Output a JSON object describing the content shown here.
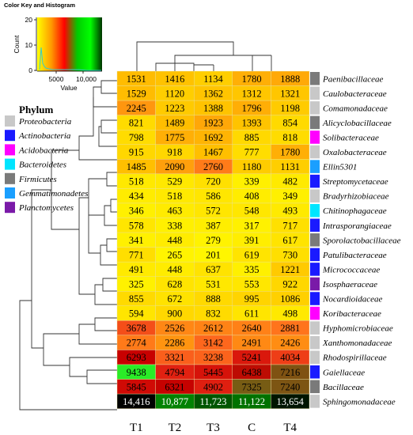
{
  "color_key": {
    "title": "Color Key and Histogram",
    "ylabel": "Count",
    "xlabel": "Value",
    "y_ticks": [
      "0",
      "10",
      "20"
    ],
    "x_ticks": [
      "5000",
      "10,000"
    ]
  },
  "legend": {
    "title": "Phylum",
    "items": [
      {
        "label": "Proteobacteria",
        "color": "#c8c8c8"
      },
      {
        "label": "Actinobacteria",
        "color": "#1a1aff"
      },
      {
        "label": "Acidobacteria",
        "color": "#ff00ff"
      },
      {
        "label": "Bacteroidetes",
        "color": "#00e5ff"
      },
      {
        "label": "Firmicutes",
        "color": "#7a7a7a"
      },
      {
        "label": "Gemmatimonadetes",
        "color": "#1a9fff"
      },
      {
        "label": "Planctomycetes",
        "color": "#7a1aa8"
      }
    ]
  },
  "chart_data": {
    "type": "heatmap",
    "columns": [
      "T1",
      "T2",
      "T3",
      "C",
      "T4"
    ],
    "rows": [
      {
        "family": "Paenibacillaceae",
        "phylum": "Firmicutes",
        "values": [
          1531,
          1416,
          1134,
          1780,
          1888
        ]
      },
      {
        "family": "Caulobacteraceae",
        "phylum": "Proteobacteria",
        "values": [
          1529,
          1120,
          1362,
          1312,
          1321
        ]
      },
      {
        "family": "Comamonadaceae",
        "phylum": "Proteobacteria",
        "values": [
          2245,
          1223,
          1388,
          1796,
          1198
        ]
      },
      {
        "family": "Alicyclobacillaceae",
        "phylum": "Firmicutes",
        "values": [
          821,
          1489,
          1923,
          1393,
          854
        ]
      },
      {
        "family": "Solibacteraceae",
        "phylum": "Acidobacteria",
        "values": [
          798,
          1775,
          1692,
          885,
          818
        ]
      },
      {
        "family": "Oxalobacteraceae",
        "phylum": "Proteobacteria",
        "values": [
          915,
          918,
          1467,
          777,
          1780
        ]
      },
      {
        "family": "Ellin5301",
        "phylum": "Gemmatimonadetes",
        "values": [
          1485,
          2090,
          2760,
          1180,
          1131
        ]
      },
      {
        "family": "Streptomycetaceae",
        "phylum": "Actinobacteria",
        "values": [
          518,
          529,
          720,
          339,
          482
        ]
      },
      {
        "family": "Bradyrhizobiaceae",
        "phylum": "Proteobacteria",
        "values": [
          434,
          518,
          586,
          408,
          349
        ]
      },
      {
        "family": "Chitinophagaceae",
        "phylum": "Bacteroidetes",
        "values": [
          346,
          463,
          572,
          548,
          493
        ]
      },
      {
        "family": "Intrasporangiaceae",
        "phylum": "Actinobacteria",
        "values": [
          578,
          338,
          387,
          317,
          717
        ]
      },
      {
        "family": "Sporolactobacillaceae",
        "phylum": "Firmicutes",
        "values": [
          341,
          448,
          279,
          391,
          617
        ]
      },
      {
        "family": "Patulibacteraceae",
        "phylum": "Actinobacteria",
        "values": [
          771,
          265,
          201,
          619,
          730
        ]
      },
      {
        "family": "Micrococcaceae",
        "phylum": "Actinobacteria",
        "values": [
          491,
          448,
          637,
          335,
          1221
        ]
      },
      {
        "family": "Isosphaeraceae",
        "phylum": "Planctomycetes",
        "values": [
          325,
          628,
          531,
          553,
          922
        ]
      },
      {
        "family": "Nocardioidaceae",
        "phylum": "Actinobacteria",
        "values": [
          855,
          672,
          888,
          995,
          1086
        ]
      },
      {
        "family": "Koribacteraceae",
        "phylum": "Acidobacteria",
        "values": [
          594,
          900,
          832,
          611,
          498
        ]
      },
      {
        "family": "Hyphomicrobiaceae",
        "phylum": "Proteobacteria",
        "values": [
          3678,
          2526,
          2612,
          2640,
          2881
        ]
      },
      {
        "family": "Xanthomonadaceae",
        "phylum": "Proteobacteria",
        "values": [
          2774,
          2286,
          3142,
          2491,
          2426
        ]
      },
      {
        "family": "Rhodospirillaceae",
        "phylum": "Proteobacteria",
        "values": [
          6293,
          3321,
          3238,
          5241,
          4034
        ]
      },
      {
        "family": "Gaiellaceae",
        "phylum": "Actinobacteria",
        "values": [
          9438,
          4794,
          5445,
          6438,
          7216
        ]
      },
      {
        "family": "Bacillaceae",
        "phylum": "Firmicutes",
        "values": [
          5845,
          6321,
          4902,
          7325,
          7240
        ]
      },
      {
        "family": "Sphingomonadaceae",
        "phylum": "Proteobacteria",
        "values": [
          14416,
          10877,
          11723,
          11122,
          13654
        ]
      }
    ],
    "value_labels": [
      [
        "1531",
        "1416",
        "1134",
        "1780",
        "1888"
      ],
      [
        "1529",
        "1120",
        "1362",
        "1312",
        "1321"
      ],
      [
        "2245",
        "1223",
        "1388",
        "1796",
        "1198"
      ],
      [
        "821",
        "1489",
        "1923",
        "1393",
        "854"
      ],
      [
        "798",
        "1775",
        "1692",
        "885",
        "818"
      ],
      [
        "915",
        "918",
        "1467",
        "777",
        "1780"
      ],
      [
        "1485",
        "2090",
        "2760",
        "1180",
        "1131"
      ],
      [
        "518",
        "529",
        "720",
        "339",
        "482"
      ],
      [
        "434",
        "518",
        "586",
        "408",
        "349"
      ],
      [
        "346",
        "463",
        "572",
        "548",
        "493"
      ],
      [
        "578",
        "338",
        "387",
        "317",
        "717"
      ],
      [
        "341",
        "448",
        "279",
        "391",
        "617"
      ],
      [
        "771",
        "265",
        "201",
        "619",
        "730"
      ],
      [
        "491",
        "448",
        "637",
        "335",
        "1221"
      ],
      [
        "325",
        "628",
        "531",
        "553",
        "922"
      ],
      [
        "855",
        "672",
        "888",
        "995",
        "1086"
      ],
      [
        "594",
        "900",
        "832",
        "611",
        "498"
      ],
      [
        "3678",
        "2526",
        "2612",
        "2640",
        "2881"
      ],
      [
        "2774",
        "2286",
        "3142",
        "2491",
        "2426"
      ],
      [
        "6293",
        "3321",
        "3238",
        "5241",
        "4034"
      ],
      [
        "9438",
        "4794",
        "5445",
        "6438",
        "7216"
      ],
      [
        "5845",
        "6321",
        "4902",
        "7325",
        "7240"
      ],
      [
        "14,416",
        "10,877",
        "11,723",
        "11,122",
        "13,654"
      ]
    ],
    "color_scale": [
      "#ffff00",
      "#ff9900",
      "#ff0000",
      "#00ff00",
      "#003300",
      "#000000"
    ],
    "value_range": [
      0,
      14500
    ]
  }
}
